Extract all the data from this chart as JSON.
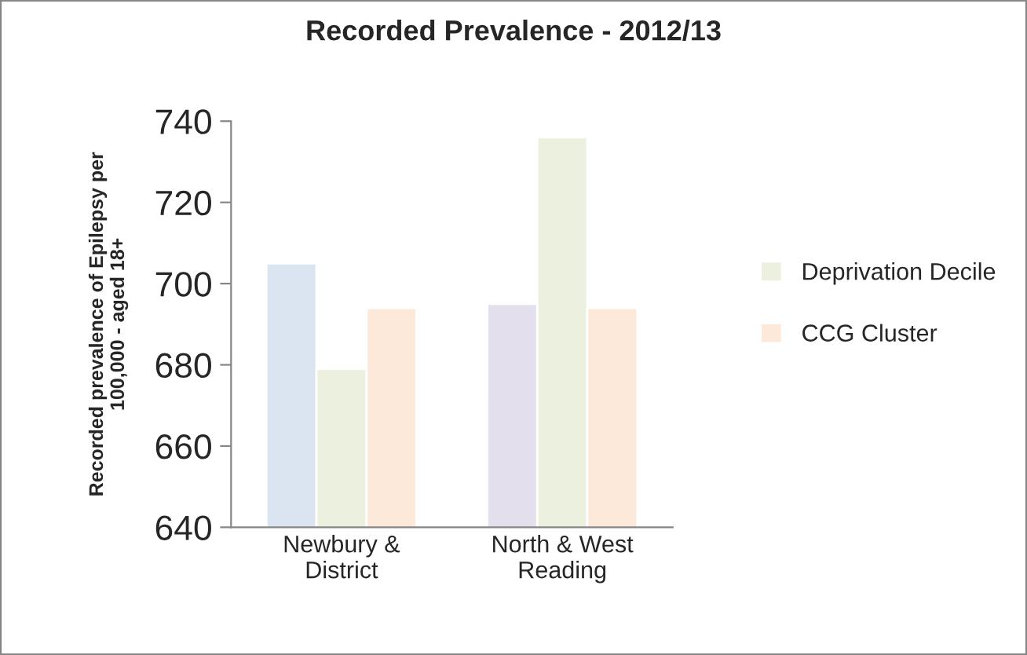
{
  "chart_data": {
    "type": "bar",
    "title": "Recorded Prevalence - 2012/13",
    "ylabel": "Recorded prevalence of Epilepsy per\n100,000 - aged 18+",
    "categories": [
      "Newbury &\nDistrict",
      "North & West\nReading"
    ],
    "series": [
      {
        "colors": [
          "#dbe5f1",
          "#e4dfec"
        ],
        "values": [
          705,
          695
        ]
      },
      {
        "name": "Deprivation Decile",
        "color": "#ebf1de",
        "values": [
          679,
          736
        ]
      },
      {
        "name": "CCG Cluster",
        "color": "#fde9d9",
        "values": [
          694,
          694
        ]
      }
    ],
    "ylim": [
      640,
      740
    ],
    "yticks": [
      640,
      660,
      680,
      700,
      720,
      740
    ],
    "grid": false,
    "legend": "right"
  }
}
